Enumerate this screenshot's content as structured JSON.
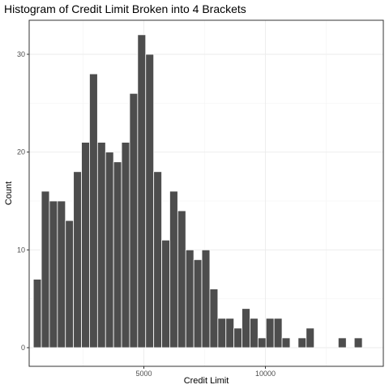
{
  "chart_data": {
    "type": "bar",
    "title": "Histogram of Credit Limit Broken into 4 Brackets",
    "xlabel": "Credit Limit",
    "ylabel": "Count",
    "xlim": [
      -400,
      15200
    ],
    "ylim": [
      0,
      32
    ],
    "x_ticks": [
      5000,
      10000
    ],
    "x_tick_labels": [
      "5000",
      "10000"
    ],
    "y_ticks": [
      0,
      10,
      20,
      30
    ],
    "y_tick_labels": [
      "0",
      "10",
      "20",
      "30"
    ],
    "bin_width": 330,
    "x": [
      620,
      950,
      1280,
      1610,
      1940,
      2270,
      2600,
      2930,
      3260,
      3590,
      3920,
      4250,
      4580,
      4910,
      5240,
      5570,
      5900,
      6230,
      6560,
      6890,
      7220,
      7550,
      7880,
      8210,
      8540,
      8870,
      9200,
      9530,
      9860,
      10190,
      10520,
      10850,
      11180,
      11510,
      11840,
      12170,
      12500,
      12830,
      13160,
      13490,
      13820,
      14150
    ],
    "values": [
      7,
      16,
      15,
      15,
      13,
      18,
      21,
      28,
      21,
      20,
      19,
      21,
      26,
      32,
      30,
      18,
      11,
      16,
      14,
      10,
      9,
      10,
      6,
      3,
      3,
      2,
      4,
      3,
      1,
      3,
      3,
      1,
      0,
      1,
      2,
      0,
      0,
      0,
      1,
      0,
      1,
      0
    ],
    "grid": true,
    "legend": "none",
    "colors": {
      "bar": "#4d4d4d",
      "panel": "#ffffff",
      "grid": "#ebebeb",
      "border": "#333333"
    }
  }
}
